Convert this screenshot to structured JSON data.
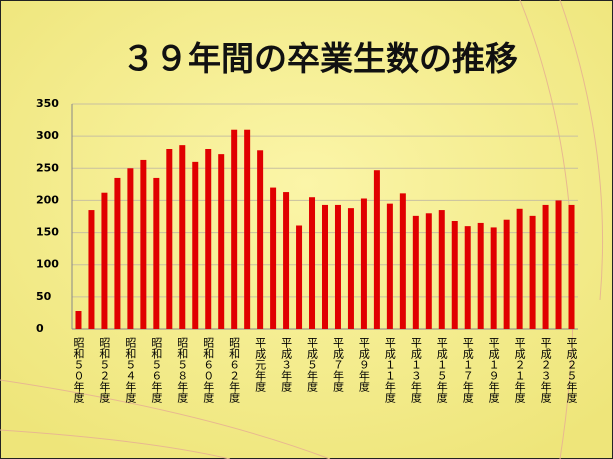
{
  "chart_data": {
    "type": "bar",
    "title": "３９年間の卒業生数の推移",
    "categories": [
      "昭和５０年度",
      null,
      "昭和５２年度",
      null,
      "昭和５４年度",
      null,
      "昭和５６年度",
      null,
      "昭和５８年度",
      null,
      "昭和６０年度",
      null,
      "昭和６２年度",
      null,
      "平成元年度",
      null,
      "平成３年度",
      null,
      "平成５年度",
      null,
      "平成７年度",
      null,
      "平成９年度",
      null,
      "平成１１年度",
      null,
      "平成１３年度",
      null,
      "平成１５年度",
      null,
      "平成１７年度",
      null,
      "平成１９年度",
      null,
      "平成２１年度",
      null,
      "平成２３年度",
      null,
      "平成２５年度"
    ],
    "values": [
      28,
      185,
      212,
      235,
      250,
      263,
      235,
      280,
      286,
      260,
      280,
      272,
      310,
      310,
      278,
      220,
      213,
      161,
      205,
      193,
      193,
      188,
      203,
      247,
      195,
      211,
      176,
      180,
      185,
      168,
      160,
      165,
      158,
      170,
      187,
      176,
      193,
      200,
      193
    ],
    "color": "#e00000",
    "ylim": [
      0,
      350
    ],
    "yticks": [
      0,
      50,
      100,
      150,
      200,
      250,
      300,
      350
    ],
    "grid": true
  }
}
